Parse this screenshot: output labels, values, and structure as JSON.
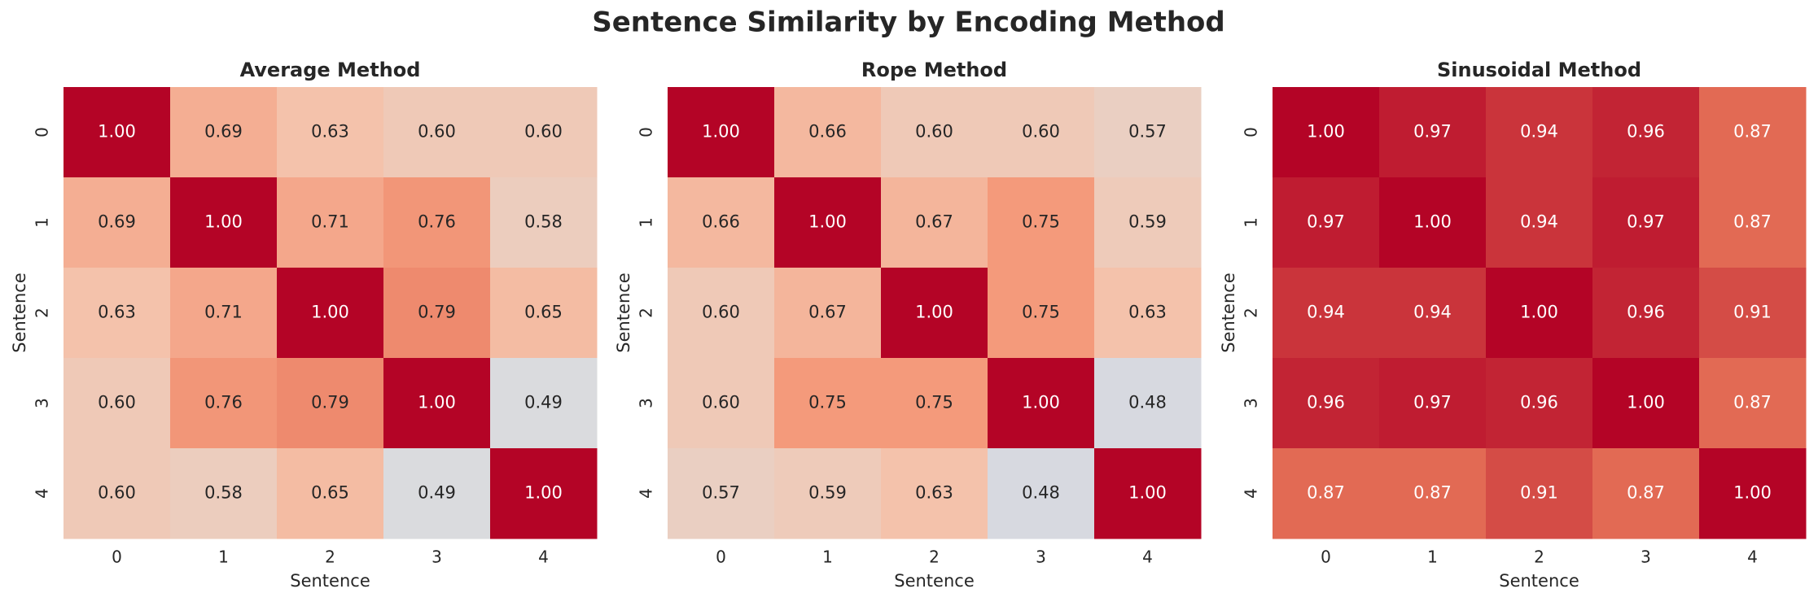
{
  "title": "Sentence Similarity by Encoding Method",
  "chart_data": [
    {
      "type": "heatmap",
      "title": "Average Method",
      "x_label": "Sentence",
      "y_label": "Sentence",
      "x_categories": [
        "0",
        "1",
        "2",
        "3",
        "4"
      ],
      "y_categories": [
        "0",
        "1",
        "2",
        "3",
        "4"
      ],
      "colormap": "coolwarm",
      "vmin": 0,
      "vmax": 1,
      "values": [
        [
          1,
          0.69,
          0.63,
          0.6,
          0.6
        ],
        [
          0.69,
          1,
          0.71,
          0.76,
          0.58
        ],
        [
          0.63,
          0.71,
          1,
          0.79,
          0.65
        ],
        [
          0.6,
          0.76,
          0.79,
          1,
          0.49
        ],
        [
          0.6,
          0.58,
          0.65,
          0.49,
          1
        ]
      ],
      "value_labels": [
        [
          "1.00",
          "0.69",
          "0.63",
          "0.60",
          "0.60"
        ],
        [
          "0.69",
          "1.00",
          "0.71",
          "0.76",
          "0.58"
        ],
        [
          "0.63",
          "0.71",
          "1.00",
          "0.79",
          "0.65"
        ],
        [
          "0.60",
          "0.76",
          "0.79",
          "1.00",
          "0.49"
        ],
        [
          "0.60",
          "0.58",
          "0.65",
          "0.49",
          "1.00"
        ]
      ]
    },
    {
      "type": "heatmap",
      "title": "Rope Method",
      "x_label": "Sentence",
      "y_label": "Sentence",
      "x_categories": [
        "0",
        "1",
        "2",
        "3",
        "4"
      ],
      "y_categories": [
        "0",
        "1",
        "2",
        "3",
        "4"
      ],
      "colormap": "coolwarm",
      "vmin": 0,
      "vmax": 1,
      "values": [
        [
          1,
          0.66,
          0.6,
          0.6,
          0.57
        ],
        [
          0.66,
          1,
          0.67,
          0.75,
          0.59
        ],
        [
          0.6,
          0.67,
          1,
          0.75,
          0.63
        ],
        [
          0.6,
          0.75,
          0.75,
          1,
          0.48
        ],
        [
          0.57,
          0.59,
          0.63,
          0.48,
          1
        ]
      ],
      "value_labels": [
        [
          "1.00",
          "0.66",
          "0.60",
          "0.60",
          "0.57"
        ],
        [
          "0.66",
          "1.00",
          "0.67",
          "0.75",
          "0.59"
        ],
        [
          "0.60",
          "0.67",
          "1.00",
          "0.75",
          "0.63"
        ],
        [
          "0.60",
          "0.75",
          "0.75",
          "1.00",
          "0.48"
        ],
        [
          "0.57",
          "0.59",
          "0.63",
          "0.48",
          "1.00"
        ]
      ]
    },
    {
      "type": "heatmap",
      "title": "Sinusoidal Method",
      "x_label": "Sentence",
      "y_label": "Sentence",
      "x_categories": [
        "0",
        "1",
        "2",
        "3",
        "4"
      ],
      "y_categories": [
        "0",
        "1",
        "2",
        "3",
        "4"
      ],
      "colormap": "coolwarm",
      "vmin": 0,
      "vmax": 1,
      "values": [
        [
          1,
          0.97,
          0.94,
          0.96,
          0.87
        ],
        [
          0.97,
          1,
          0.94,
          0.97,
          0.87
        ],
        [
          0.94,
          0.94,
          1,
          0.96,
          0.91
        ],
        [
          0.96,
          0.97,
          0.96,
          1,
          0.87
        ],
        [
          0.87,
          0.87,
          0.91,
          0.87,
          1
        ]
      ],
      "value_labels": [
        [
          "1.00",
          "0.97",
          "0.94",
          "0.96",
          "0.87"
        ],
        [
          "0.97",
          "1.00",
          "0.94",
          "0.97",
          "0.87"
        ],
        [
          "0.94",
          "0.94",
          "1.00",
          "0.96",
          "0.91"
        ],
        [
          "0.96",
          "0.97",
          "0.96",
          "1.00",
          "0.87"
        ],
        [
          "0.87",
          "0.87",
          "0.91",
          "0.87",
          "1.00"
        ]
      ]
    }
  ]
}
